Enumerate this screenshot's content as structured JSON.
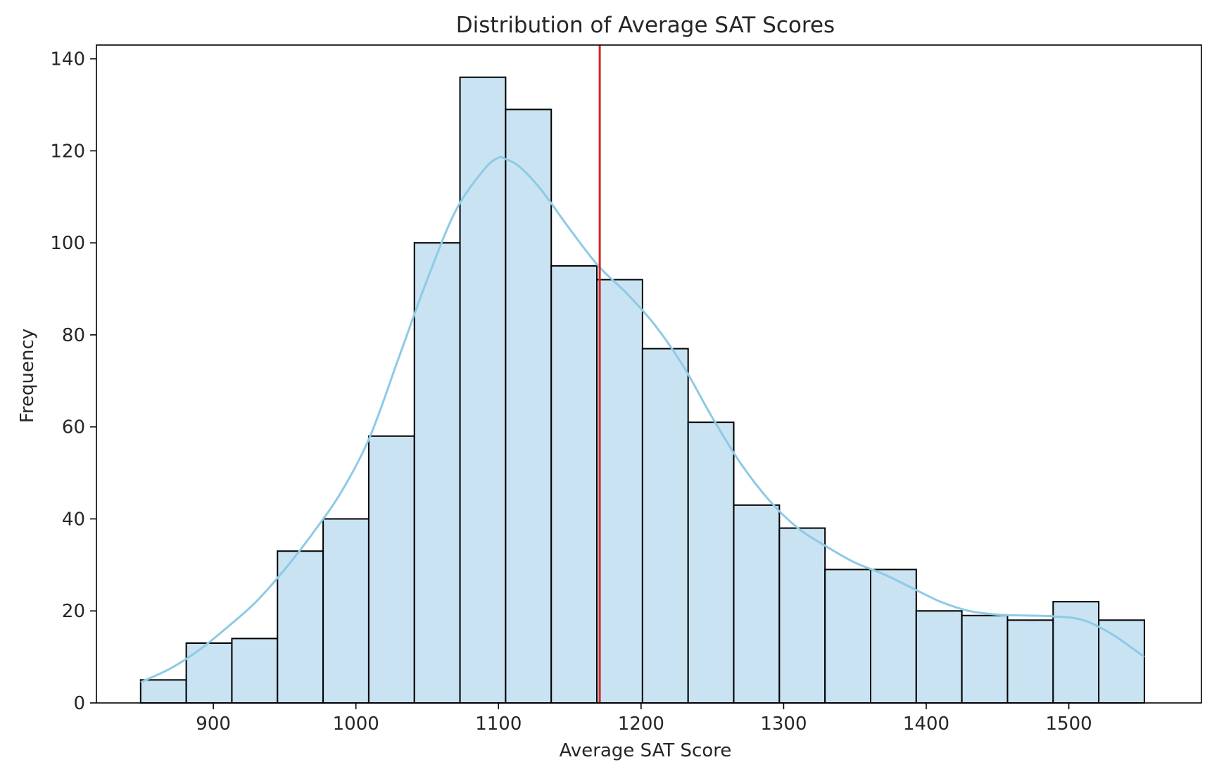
{
  "chart_data": {
    "type": "histogram",
    "title": "Distribution of Average SAT Scores",
    "xlabel": "Average SAT Score",
    "ylabel": "Frequency",
    "xlim": [
      818,
      1593
    ],
    "ylim": [
      0,
      143
    ],
    "xticks": [
      900,
      1000,
      1100,
      1200,
      1300,
      1400,
      1500
    ],
    "yticks": [
      0,
      20,
      40,
      60,
      80,
      100,
      120,
      140
    ],
    "bins": [
      {
        "start": 849,
        "end": 881,
        "count": 5
      },
      {
        "start": 881,
        "end": 913,
        "count": 13
      },
      {
        "start": 913,
        "end": 945,
        "count": 14
      },
      {
        "start": 945,
        "end": 977,
        "count": 33
      },
      {
        "start": 977,
        "end": 1009,
        "count": 40
      },
      {
        "start": 1009,
        "end": 1041,
        "count": 58
      },
      {
        "start": 1041,
        "end": 1073,
        "count": 100
      },
      {
        "start": 1073,
        "end": 1105,
        "count": 136
      },
      {
        "start": 1105,
        "end": 1137,
        "count": 129
      },
      {
        "start": 1137,
        "end": 1169,
        "count": 95
      },
      {
        "start": 1169,
        "end": 1201,
        "count": 92
      },
      {
        "start": 1201,
        "end": 1233,
        "count": 77
      },
      {
        "start": 1233,
        "end": 1265,
        "count": 61
      },
      {
        "start": 1265,
        "end": 1297,
        "count": 43
      },
      {
        "start": 1297,
        "end": 1329,
        "count": 38
      },
      {
        "start": 1329,
        "end": 1361,
        "count": 29
      },
      {
        "start": 1361,
        "end": 1393,
        "count": 29
      },
      {
        "start": 1393,
        "end": 1425,
        "count": 20
      },
      {
        "start": 1425,
        "end": 1457,
        "count": 19
      },
      {
        "start": 1457,
        "end": 1489,
        "count": 18
      },
      {
        "start": 1489,
        "end": 1521,
        "count": 22
      },
      {
        "start": 1521,
        "end": 1553,
        "count": 18
      }
    ],
    "kde": {
      "x": [
        849,
        870,
        890,
        910,
        930,
        950,
        970,
        990,
        1010,
        1030,
        1050,
        1070,
        1090,
        1100,
        1105,
        1115,
        1130,
        1150,
        1170,
        1190,
        1210,
        1230,
        1250,
        1270,
        1290,
        1310,
        1330,
        1350,
        1370,
        1390,
        1410,
        1430,
        1450,
        1470,
        1490,
        1510,
        1530,
        1553
      ],
      "y": [
        4.5,
        7.5,
        11.5,
        16.5,
        22,
        29,
        37,
        46,
        58,
        75,
        92,
        107,
        116,
        118.5,
        118.2,
        116.5,
        111.5,
        103,
        95,
        89,
        82,
        73,
        62,
        52,
        44,
        38,
        34,
        30.5,
        28,
        25,
        22,
        20,
        19.2,
        19,
        18.8,
        18,
        15,
        10
      ]
    },
    "mean_line": {
      "x": 1171,
      "color": "#d62728"
    },
    "colors": {
      "bar_fill": "#c9e3f2",
      "bar_edge": "#000000",
      "kde_line": "#8ecae6"
    },
    "grid": false,
    "legend": "none"
  }
}
